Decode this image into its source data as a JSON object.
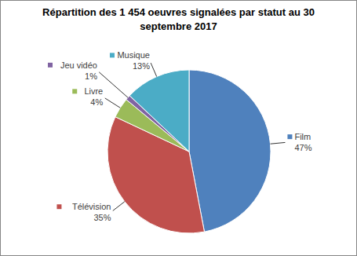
{
  "chart_data": {
    "type": "pie",
    "title": "Répartition des 1 454 oeuvres signalées par statut au 30 septembre 2017",
    "categories": [
      "Film",
      "Télévision",
      "Livre",
      "Jeu vidéo",
      "Musique"
    ],
    "values": [
      47,
      35,
      4,
      1,
      13
    ],
    "value_labels": [
      "47%",
      "35%",
      "4%",
      "1%",
      "13%"
    ],
    "colors": [
      "#4f81bd",
      "#c0504d",
      "#9bbb59",
      "#8064a2",
      "#4bacc6"
    ],
    "data_labels": true
  }
}
